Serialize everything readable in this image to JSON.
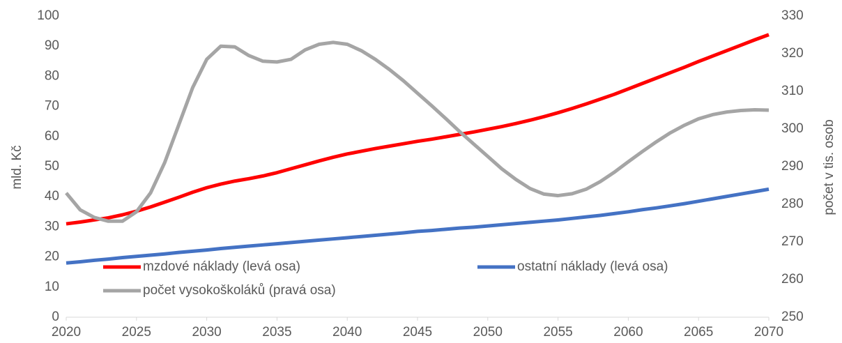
{
  "chart_data": {
    "type": "line",
    "x": [
      2020,
      2021,
      2022,
      2023,
      2024,
      2025,
      2026,
      2027,
      2028,
      2029,
      2030,
      2031,
      2032,
      2033,
      2034,
      2035,
      2036,
      2037,
      2038,
      2039,
      2040,
      2041,
      2042,
      2043,
      2044,
      2045,
      2046,
      2047,
      2048,
      2049,
      2050,
      2051,
      2052,
      2053,
      2054,
      2055,
      2056,
      2057,
      2058,
      2059,
      2060,
      2061,
      2062,
      2063,
      2064,
      2065,
      2066,
      2067,
      2068,
      2069,
      2070
    ],
    "series": [
      {
        "name": "mzdové náklady (levá osa)",
        "color": "#ff0000",
        "values": [
          31,
          31.6,
          32.3,
          33,
          34,
          35.2,
          36.6,
          38.2,
          39.8,
          41.5,
          43,
          44.2,
          45.2,
          46,
          46.9,
          48,
          49.3,
          50.6,
          51.9,
          53.1,
          54.2,
          55.1,
          56,
          56.8,
          57.6,
          58.4,
          59.1,
          59.9,
          60.7,
          61.5,
          62.4,
          63.3,
          64.3,
          65.4,
          66.6,
          67.9,
          69.3,
          70.8,
          72.4,
          74,
          75.8,
          77.6,
          79.4,
          81.2,
          83,
          84.9,
          86.7,
          88.5,
          90.3,
          92.1,
          93.8
        ]
      },
      {
        "name": "ostatní náklady (levá osa)",
        "color": "#4472c4",
        "values": [
          18,
          18.4,
          18.9,
          19.3,
          19.8,
          20.2,
          20.6,
          21,
          21.5,
          21.9,
          22.3,
          22.8,
          23.2,
          23.6,
          24,
          24.4,
          24.8,
          25.2,
          25.6,
          26,
          26.4,
          26.8,
          27.2,
          27.6,
          28,
          28.5,
          28.8,
          29.2,
          29.6,
          29.9,
          30.3,
          30.7,
          31.1,
          31.5,
          31.9,
          32.3,
          32.8,
          33.3,
          33.8,
          34.4,
          35,
          35.7,
          36.3,
          37,
          37.7,
          38.5,
          39.3,
          40.1,
          40.9,
          41.7,
          42.5
        ]
      },
      {
        "name": "počet vysokoškoláků (pravá osa)",
        "color": "#a5a5a5",
        "axis": "y2",
        "values": [
          283,
          278.5,
          276.5,
          275.5,
          275.5,
          278,
          283,
          291,
          301,
          311,
          318.5,
          322,
          321.8,
          319.5,
          318,
          317.8,
          318.5,
          321,
          322.5,
          323,
          322.5,
          320.8,
          318.5,
          315.8,
          312.8,
          309.5,
          306.2,
          302.8,
          299.3,
          296,
          292.7,
          289.4,
          286.6,
          284.2,
          282.7,
          282.3,
          282.8,
          284,
          286,
          288.5,
          291.3,
          294,
          296.6,
          299,
          301,
          302.7,
          303.8,
          304.5,
          304.9,
          305.1,
          305
        ]
      }
    ],
    "y_label": "mld. Kč",
    "y2_label": "počet v tis. osob",
    "xlim": [
      2020,
      2070
    ],
    "xticks": [
      2020,
      2025,
      2030,
      2035,
      2040,
      2045,
      2050,
      2055,
      2060,
      2065,
      2070
    ],
    "ylim": [
      0,
      100
    ],
    "yticks": [
      0,
      10,
      20,
      30,
      40,
      50,
      60,
      70,
      80,
      90,
      100
    ],
    "y2lim": [
      250,
      330
    ],
    "y2ticks": [
      250,
      260,
      270,
      280,
      290,
      300,
      310,
      320,
      330
    ],
    "legend": "lower left",
    "grid": false
  }
}
